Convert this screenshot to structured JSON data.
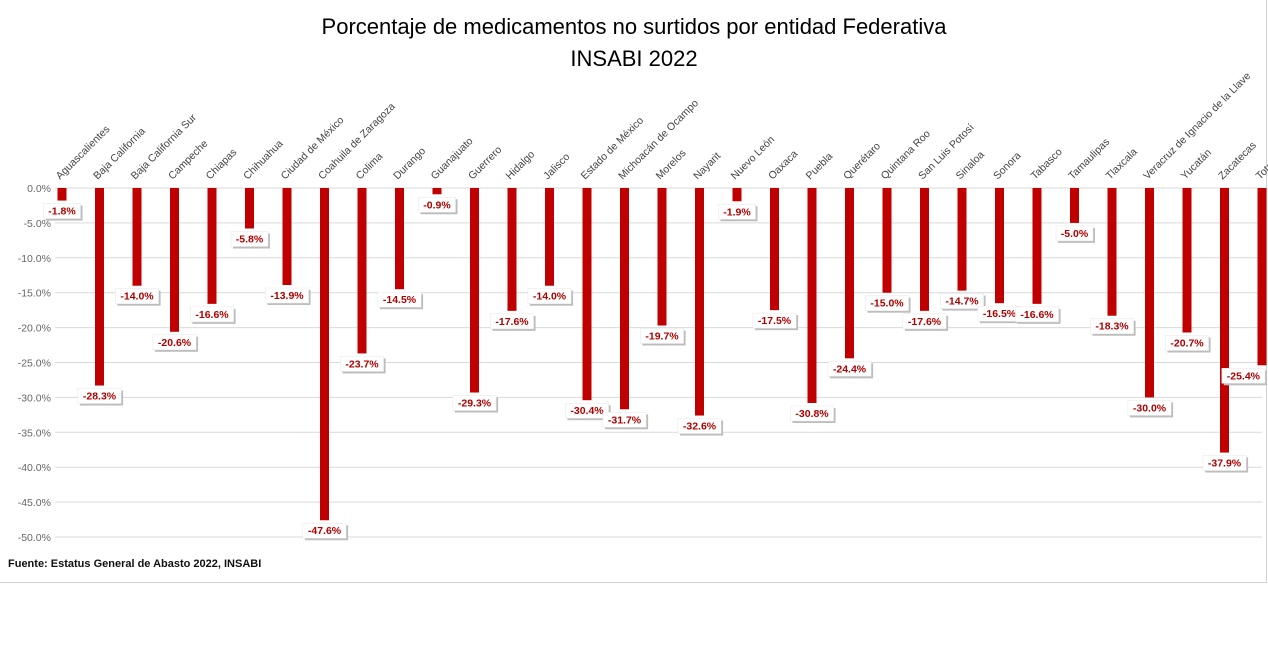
{
  "chart_data": {
    "type": "bar",
    "title": "Porcentaje de medicamentos no surtidos por entidad Federativa",
    "subtitle": "INSABI 2022",
    "xlabel": "",
    "ylabel": "",
    "ylim": [
      -50,
      0
    ],
    "yticks": [
      "0.0%",
      "-5.0%",
      "-10.0%",
      "-15.0%",
      "-20.0%",
      "-25.0%",
      "-30.0%",
      "-35.0%",
      "-40.0%",
      "-45.0%",
      "-50.0%"
    ],
    "grid": true,
    "legend": "none",
    "bar_color": "#c00000",
    "categories": [
      "Aguascalientes",
      "Baja California",
      "Baja California Sur",
      "Campeche",
      "Chiapas",
      "Chihuahua",
      "Ciudad de México",
      "Coahuila de Zaragoza",
      "Colima",
      "Durango",
      "Guanajuato",
      "Guerrero",
      "Hidalgo",
      "Jalisco",
      "Estado de México",
      "Michoacán de Ocampo",
      "Morelos",
      "Nayarit",
      "Nuevo León",
      "Oaxaca",
      "Puebla",
      "Querétaro",
      "Quintana Roo",
      "San Luis Potosí",
      "Sinaloa",
      "Sonora",
      "Tabasco",
      "Tamaulipas",
      "Tlaxcala",
      "Veracruz de Ignacio de la Llave",
      "Yucatán",
      "Zacatecas",
      "Total"
    ],
    "values": [
      -1.8,
      -28.3,
      -14.0,
      -20.6,
      -16.6,
      -5.8,
      -13.9,
      -47.6,
      -23.7,
      -14.5,
      -0.9,
      -29.3,
      -17.6,
      -14.0,
      -30.4,
      -31.7,
      -19.7,
      -32.6,
      -1.9,
      -17.5,
      -30.8,
      -24.4,
      -15.0,
      -17.6,
      -14.7,
      -16.5,
      -16.6,
      -5.0,
      -18.3,
      -30.0,
      -20.7,
      -37.9,
      -25.4
    ],
    "data_labels": [
      "-1.8%",
      "-28.3%",
      "-14.0%",
      "-20.6%",
      "-16.6%",
      "-5.8%",
      "-13.9%",
      "-47.6%",
      "-23.7%",
      "-14.5%",
      "-0.9%",
      "-29.3%",
      "-17.6%",
      "-14.0%",
      "-30.4%",
      "-31.7%",
      "-19.7%",
      "-32.6%",
      "-1.9%",
      "-17.5%",
      "-30.8%",
      "-24.4%",
      "-15.0%",
      "-17.6%",
      "-14.7%",
      "-16.5%",
      "-16.6%",
      "-5.0%",
      "-18.3%",
      "-30.0%",
      "-20.7%",
      "-37.9%",
      "-25.4%"
    ]
  },
  "source_note": "Fuente: Estatus General de Abasto 2022, INSABI"
}
